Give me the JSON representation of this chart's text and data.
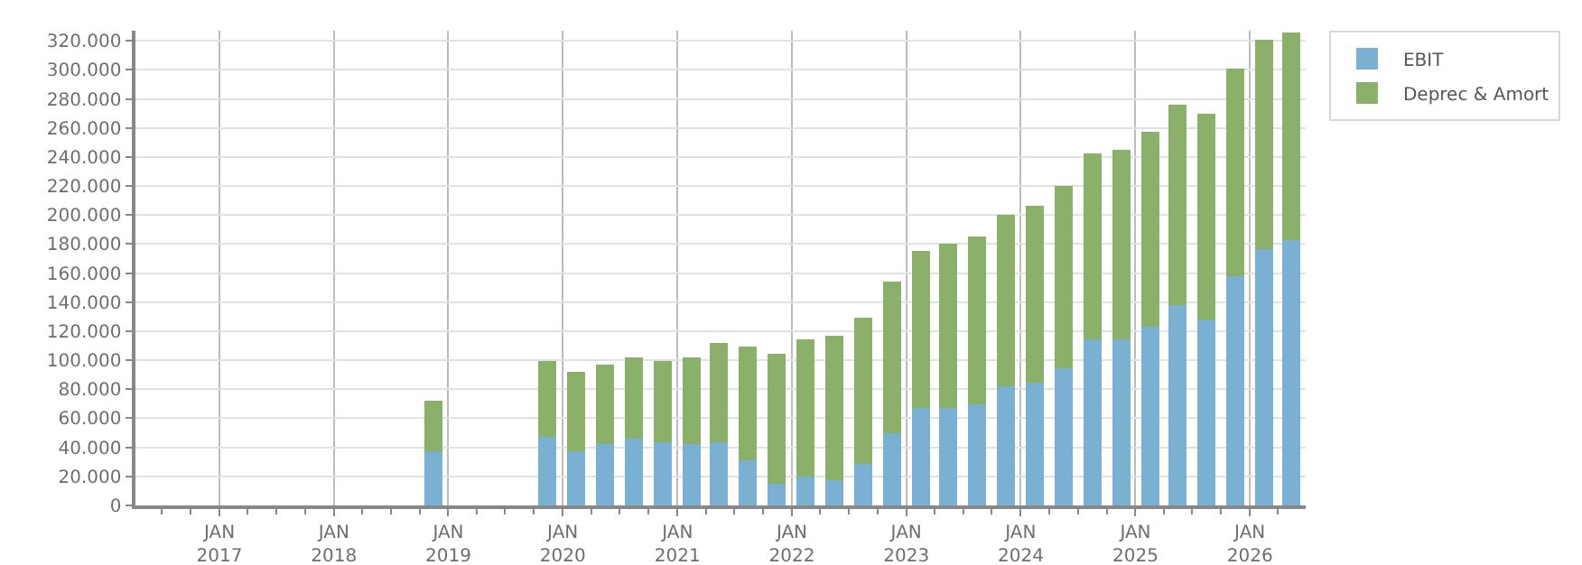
{
  "chart_data": {
    "type": "bar",
    "stacked": true,
    "x": [
      "2018-11-15",
      "2019-11-15",
      "2020-02-15",
      "2020-05-15",
      "2020-08-15",
      "2020-11-15",
      "2021-02-15",
      "2021-05-15",
      "2021-08-15",
      "2021-11-15",
      "2022-02-15",
      "2022-05-15",
      "2022-08-15",
      "2022-11-15",
      "2023-02-15",
      "2023-05-15",
      "2023-08-15",
      "2023-11-15",
      "2024-02-15",
      "2024-05-15",
      "2024-08-15",
      "2024-11-15",
      "2025-02-15",
      "2025-05-15",
      "2025-08-15",
      "2025-11-15",
      "2026-02-15",
      "2026-05-15"
    ],
    "series": [
      {
        "name": "EBIT",
        "color": "#7ab1d3",
        "values": [
          37000,
          47000,
          37000,
          42000,
          45500,
          43000,
          42000,
          43000,
          30500,
          15500,
          20500,
          18000,
          28000,
          49500,
          67500,
          67000,
          69500,
          82000,
          85000,
          95000,
          114500,
          114500,
          122500,
          137500,
          127500,
          157500,
          176500,
          182500
        ]
      },
      {
        "name": "Deprec & Amort",
        "color": "#8ab06a",
        "values": [
          35500,
          53000,
          55500,
          55500,
          57000,
          57000,
          60500,
          68500,
          78500,
          88500,
          94500,
          98500,
          101000,
          104500,
          107500,
          113000,
          115500,
          118000,
          121000,
          125000,
          128000,
          130500,
          135000,
          138500,
          142000,
          143500,
          144500,
          143500
        ]
      }
    ],
    "xlim": [
      "2016-04-08",
      "2026-06-28"
    ],
    "xticks": [
      {
        "value": "2016-07-01",
        "label": null
      },
      {
        "value": "2016-10-01",
        "label": null
      },
      {
        "value": "2017-01-01",
        "label": "JAN\n2017"
      },
      {
        "value": "2017-04-01",
        "label": null
      },
      {
        "value": "2017-07-01",
        "label": null
      },
      {
        "value": "2017-10-01",
        "label": null
      },
      {
        "value": "2018-01-01",
        "label": "JAN\n2018"
      },
      {
        "value": "2018-04-01",
        "label": null
      },
      {
        "value": "2018-07-01",
        "label": null
      },
      {
        "value": "2018-10-01",
        "label": null
      },
      {
        "value": "2019-01-01",
        "label": "JAN\n2019"
      },
      {
        "value": "2019-04-01",
        "label": null
      },
      {
        "value": "2019-07-01",
        "label": null
      },
      {
        "value": "2019-10-01",
        "label": null
      },
      {
        "value": "2020-01-01",
        "label": "JAN\n2020"
      },
      {
        "value": "2020-04-01",
        "label": null
      },
      {
        "value": "2020-07-01",
        "label": null
      },
      {
        "value": "2020-10-01",
        "label": null
      },
      {
        "value": "2021-01-01",
        "label": "JAN\n2021"
      },
      {
        "value": "2021-04-01",
        "label": null
      },
      {
        "value": "2021-07-01",
        "label": null
      },
      {
        "value": "2021-10-01",
        "label": null
      },
      {
        "value": "2022-01-01",
        "label": "JAN\n2022"
      },
      {
        "value": "2022-04-01",
        "label": null
      },
      {
        "value": "2022-07-01",
        "label": null
      },
      {
        "value": "2022-10-01",
        "label": null
      },
      {
        "value": "2023-01-01",
        "label": "JAN\n2023"
      },
      {
        "value": "2023-04-01",
        "label": null
      },
      {
        "value": "2023-07-01",
        "label": null
      },
      {
        "value": "2023-10-01",
        "label": null
      },
      {
        "value": "2024-01-01",
        "label": "JAN\n2024"
      },
      {
        "value": "2024-04-01",
        "label": null
      },
      {
        "value": "2024-07-01",
        "label": null
      },
      {
        "value": "2024-10-01",
        "label": null
      },
      {
        "value": "2025-01-01",
        "label": "JAN\n2025"
      },
      {
        "value": "2025-04-01",
        "label": null
      },
      {
        "value": "2025-07-01",
        "label": null
      },
      {
        "value": "2025-10-01",
        "label": null
      },
      {
        "value": "2026-01-01",
        "label": "JAN\n2026"
      },
      {
        "value": "2026-04-01",
        "label": null
      }
    ],
    "ylim": [
      0,
      327000
    ],
    "yticks": [
      0,
      {
        "value": 20000,
        "label": "20.000"
      },
      {
        "value": 40000,
        "label": "40.000"
      },
      {
        "value": 60000,
        "label": "60.000"
      },
      {
        "value": 80000,
        "label": "80.000"
      },
      {
        "value": 100000,
        "label": "100.000"
      },
      {
        "value": 120000,
        "label": "120.000"
      },
      {
        "value": 140000,
        "label": "140.000"
      },
      {
        "value": 160000,
        "label": "160.000"
      },
      {
        "value": 180000,
        "label": "180.000"
      },
      {
        "value": 200000,
        "label": "200.000"
      },
      {
        "value": 220000,
        "label": "220.000"
      },
      {
        "value": 240000,
        "label": "240.000"
      },
      {
        "value": 260000,
        "label": "260.000"
      },
      {
        "value": 280000,
        "label": "280.000"
      },
      {
        "value": 300000,
        "label": "300.000"
      },
      {
        "value": 320000,
        "label": "320.000"
      }
    ],
    "grid": true,
    "legend": "top right"
  }
}
